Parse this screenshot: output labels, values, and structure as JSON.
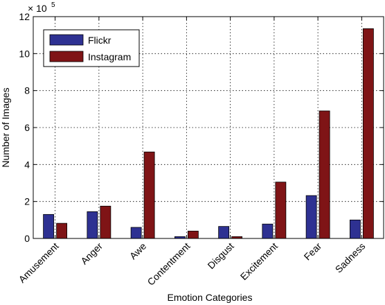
{
  "chart_data": {
    "type": "bar",
    "categories": [
      "Amusement",
      "Anger",
      "Awe",
      "Contentment",
      "Disgust",
      "Excitement",
      "Fear",
      "Sadness"
    ],
    "series": [
      {
        "name": "Flickr",
        "values": [
          130000,
          145000,
          60000,
          10000,
          65000,
          78000,
          232000,
          100000
        ],
        "color": "#2e3192"
      },
      {
        "name": "Instagram",
        "values": [
          82000,
          175000,
          468000,
          40000,
          10000,
          305000,
          690000,
          1135000
        ],
        "color": "#7f1416"
      }
    ],
    "xlabel": "Emotion Categories",
    "ylabel": "Number of Images",
    "ylim": [
      0,
      1200000
    ],
    "y_ticks": [
      0,
      2,
      4,
      6,
      8,
      10,
      12
    ],
    "y_tick_labels": [
      "0",
      "2",
      "4",
      "6",
      "8",
      "10",
      "12"
    ],
    "y_scale_multiplier": "× 10",
    "y_scale_exponent": "5",
    "grid": true,
    "legend_position": "top-left"
  }
}
